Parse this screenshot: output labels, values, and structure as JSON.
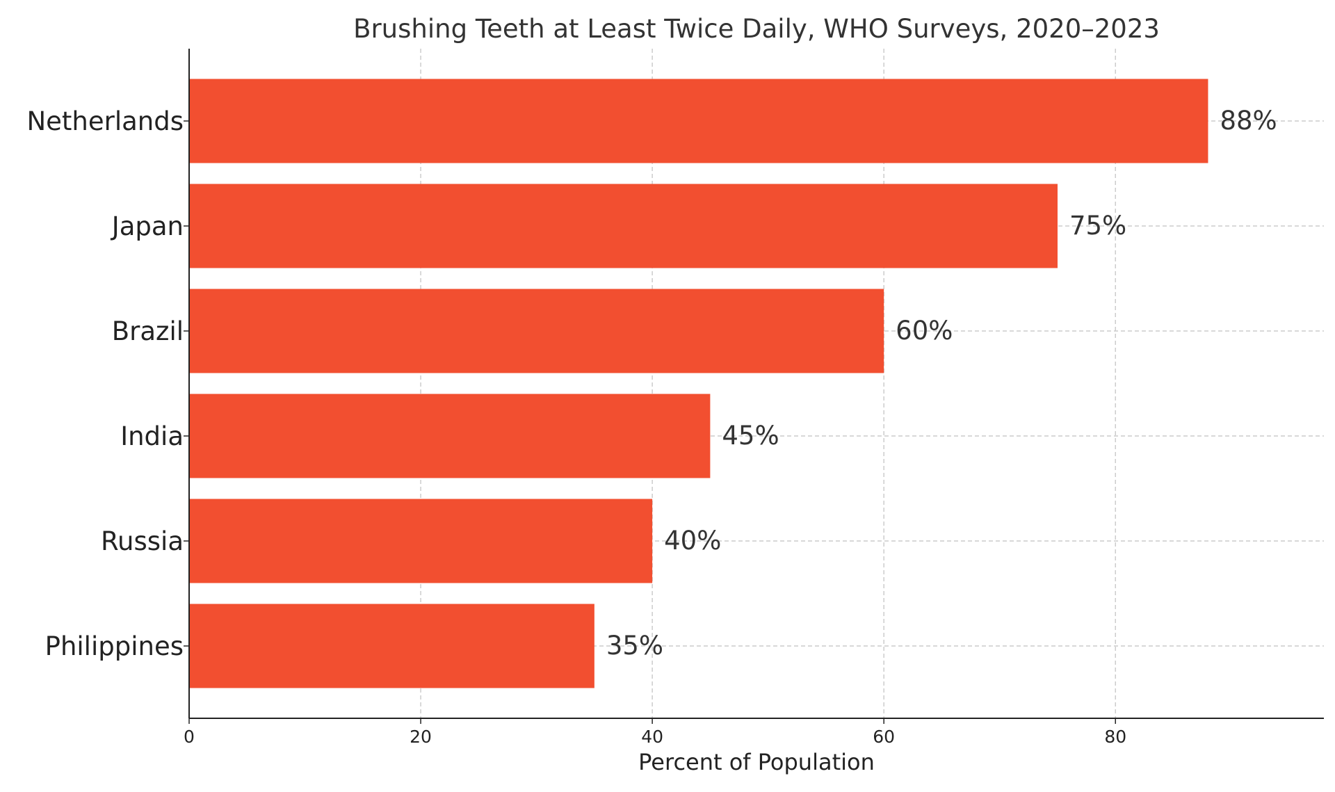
{
  "chart_data": {
    "type": "bar",
    "orientation": "horizontal",
    "title": "Brushing Teeth at Least Twice Daily, WHO Surveys, 2020–2023",
    "xlabel": "Percent of Population",
    "ylabel": "",
    "categories": [
      "Netherlands",
      "Japan",
      "Brazil",
      "India",
      "Russia",
      "Philippines"
    ],
    "values": [
      88,
      75,
      60,
      45,
      40,
      35
    ],
    "data_labels": [
      "88%",
      "75%",
      "60%",
      "45%",
      "40%",
      "35%"
    ],
    "xlim": [
      0,
      98
    ],
    "xticks": [
      0,
      20,
      40,
      60,
      80
    ],
    "xtick_labels": [
      "0",
      "20",
      "40",
      "60",
      "80"
    ],
    "grid": true,
    "bar_color": "#f24f30",
    "grid_color": "#cccccc",
    "axis_color": "#222222",
    "text_color": "#333333",
    "label_color": "#222222"
  }
}
